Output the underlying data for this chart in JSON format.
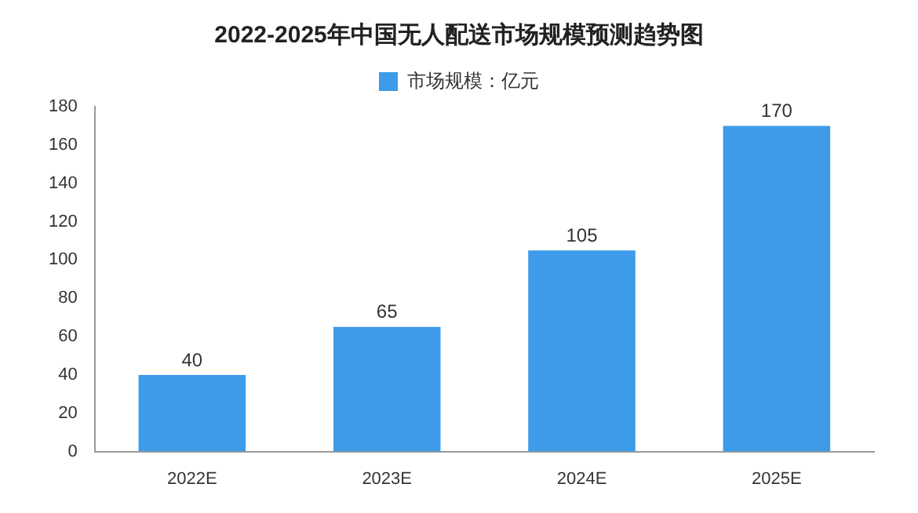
{
  "chart_data": {
    "type": "bar",
    "title": "2022-2025年中国无人配送市场规模预测趋势图",
    "categories": [
      "2022E",
      "2023E",
      "2024E",
      "2025E"
    ],
    "series": [
      {
        "name": "市场规模：亿元",
        "color": "#3d9be9",
        "values": [
          40,
          65,
          105,
          170
        ]
      }
    ],
    "ylim": [
      0,
      180
    ],
    "yticks": [
      0,
      20,
      40,
      60,
      80,
      100,
      120,
      140,
      160,
      180
    ],
    "grid": false,
    "legend": "top",
    "data_labels": true
  }
}
